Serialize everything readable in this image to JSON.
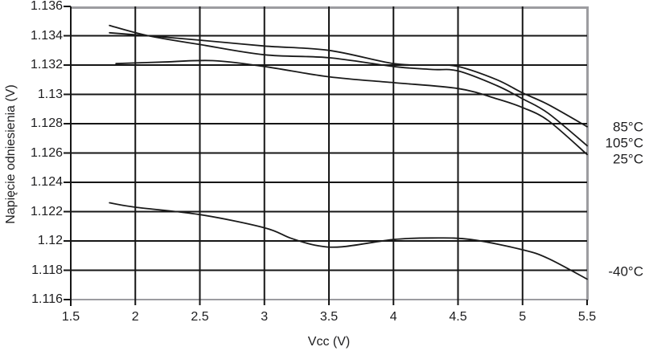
{
  "chart_data": {
    "type": "line",
    "title": "",
    "xlabel": "Vcc (V)",
    "ylabel": "Napięcie odniesienia (V)",
    "xlim": [
      1.5,
      5.5
    ],
    "ylim": [
      1.116,
      1.136
    ],
    "xtick_values": [
      1.5,
      2,
      2.5,
      3,
      3.5,
      4,
      4.5,
      5,
      5.5
    ],
    "xtick_labels": [
      "1.5",
      "2",
      "2.5",
      "3",
      "3.5",
      "4",
      "4.5",
      "5",
      "5.5"
    ],
    "ytick_values": [
      1.136,
      1.134,
      1.132,
      1.13,
      1.128,
      1.126,
      1.124,
      1.122,
      1.12,
      1.118,
      1.116
    ],
    "ytick_labels": [
      "1.136",
      "1.134",
      "1.132",
      "1.13",
      "1.128",
      "1.126",
      "1.124",
      "1.122",
      "1.12",
      "1.118",
      "1.116"
    ],
    "grid": true,
    "legend_position": "right-outside",
    "series": [
      {
        "name": "85°C",
        "label_v": 1.1278,
        "x": [
          1.8,
          2.1,
          2.5,
          3.0,
          3.5,
          4.0,
          4.3,
          4.5,
          4.8,
          5.0,
          5.2,
          5.5
        ],
        "y": [
          1.1342,
          1.134,
          1.1337,
          1.1333,
          1.133,
          1.1321,
          1.132,
          1.1319,
          1.131,
          1.1301,
          1.1293,
          1.1278
        ]
      },
      {
        "name": "105°C",
        "label_v": 1.1267,
        "x": [
          1.8,
          2.1,
          2.5,
          3.0,
          3.5,
          4.0,
          4.3,
          4.5,
          4.8,
          5.0,
          5.2,
          5.5
        ],
        "y": [
          1.1347,
          1.134,
          1.1334,
          1.1327,
          1.1325,
          1.1319,
          1.1317,
          1.1316,
          1.1306,
          1.1297,
          1.1287,
          1.1265
        ]
      },
      {
        "name": "25°C",
        "label_v": 1.1256,
        "x": [
          1.85,
          2.2,
          2.6,
          3.0,
          3.5,
          4.0,
          4.5,
          4.8,
          5.0,
          5.2,
          5.5
        ],
        "y": [
          1.1321,
          1.1322,
          1.1323,
          1.1319,
          1.1312,
          1.1308,
          1.1304,
          1.1297,
          1.1291,
          1.1282,
          1.1259
        ]
      },
      {
        "name": "-40°C",
        "label_v": 1.1179,
        "x": [
          1.8,
          2.0,
          2.5,
          3.0,
          3.2,
          3.4,
          3.6,
          4.0,
          4.3,
          4.6,
          5.0,
          5.2,
          5.5
        ],
        "y": [
          1.1226,
          1.1223,
          1.1218,
          1.1209,
          1.1202,
          1.1197,
          1.1196,
          1.1201,
          1.1202,
          1.1201,
          1.1194,
          1.1188,
          1.1174
        ]
      }
    ]
  },
  "colors": {
    "curve": "#1a1a1a",
    "grid": "#161616",
    "border": "#9c9ca0",
    "text": "#1d1d1f",
    "background": "#ffffff"
  }
}
